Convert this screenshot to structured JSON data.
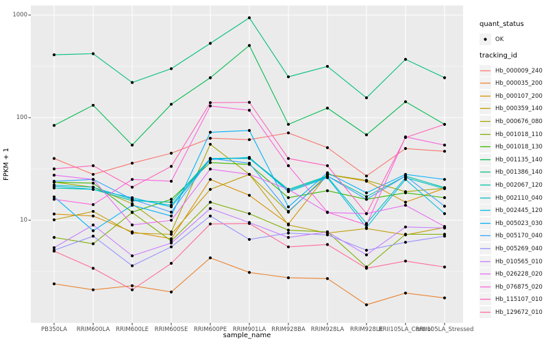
{
  "colors": {
    "panel_bg": "#EBEBEB",
    "grid": "#FFFFFF",
    "tick_mark": "#333333",
    "tick_text": "#4D4D4D",
    "axis_title_text": "#000000",
    "point": "#000000",
    "legend_key_bg": "#F2F2F2"
  },
  "legend": {
    "quant_status_title": "quant_status",
    "quant_status_items": [
      {
        "label": "OK",
        "marker": "point-icon",
        "color": "#000000"
      }
    ],
    "tracking_title": "tracking_id"
  },
  "chart_data": {
    "type": "line",
    "title": "",
    "xlabel": "sample_name",
    "ylabel": "FPKM + 1",
    "y_scale": "log10",
    "ylim": [
      1,
      1100
    ],
    "y_ticks": [
      10,
      100,
      1000
    ],
    "grid": true,
    "legend_position": "right",
    "point_marker": "black-dot (quant_status OK)",
    "categories": [
      "PB350LA",
      "RRIM600LA",
      "RRIM600LE",
      "RRIM600SE",
      "RRIM600PE",
      "RRIM901LA",
      "RRIM928BA",
      "RRIM928LA",
      "RRIM928LE",
      "RRII105LA_Control",
      "RRII105LA_Stressed"
    ],
    "series": [
      {
        "name": "Hb_000009_240",
        "color": "#F8766D",
        "values": [
          40,
          28,
          36,
          45,
          63,
          61,
          71,
          51,
          27,
          50,
          47
        ]
      },
      {
        "name": "Hb_000035_200",
        "color": "#EA8331",
        "values": [
          2.4,
          2.1,
          2.3,
          2.0,
          4.3,
          3.1,
          2.75,
          2.7,
          1.5,
          1.95,
          1.75
        ]
      },
      {
        "name": "Hb_000107_200",
        "color": "#D89000",
        "values": [
          11.5,
          11,
          7.7,
          6.6,
          25,
          17.5,
          9.2,
          28,
          24,
          15,
          20.5
        ]
      },
      {
        "name": "Hb_000359_140",
        "color": "#C09B00",
        "values": [
          10.1,
          12.2,
          7.5,
          7.3,
          20,
          28,
          9.0,
          7.5,
          8.3,
          7.2,
          8.5
        ]
      },
      {
        "name": "Hb_000676_080",
        "color": "#A3A500",
        "values": [
          23.5,
          21,
          14.5,
          7.7,
          55,
          28,
          12,
          28,
          24.5,
          19,
          20.5
        ]
      },
      {
        "name": "Hb_001018_110",
        "color": "#7CAE00",
        "values": [
          6.8,
          5.9,
          11.9,
          6.3,
          15,
          11.6,
          8.0,
          7.7,
          3.5,
          7.3,
          7.3
        ]
      },
      {
        "name": "Hb_001018_130",
        "color": "#39B600",
        "values": [
          23.5,
          23,
          12,
          16,
          36.5,
          35,
          16.6,
          19.4,
          16,
          18.5,
          16.6
        ]
      },
      {
        "name": "Hb_001135_140",
        "color": "#00BB4E",
        "values": [
          84,
          132,
          54,
          135,
          245,
          505,
          86,
          124,
          68,
          143,
          86
        ]
      },
      {
        "name": "Hb_001386_140",
        "color": "#00BF7D",
        "values": [
          410,
          420,
          220,
          300,
          530,
          940,
          250,
          316,
          156,
          370,
          245
        ]
      },
      {
        "name": "Hb_002067_120",
        "color": "#00C1A3",
        "values": [
          20.6,
          20,
          15.5,
          15,
          40,
          40.5,
          20,
          27,
          17,
          27,
          20.8
        ]
      },
      {
        "name": "Hb_002110_040",
        "color": "#00BFC4",
        "values": [
          22,
          21,
          16,
          14,
          40,
          40,
          19.5,
          26.5,
          9.3,
          26,
          20.3
        ]
      },
      {
        "name": "Hb_002445_120",
        "color": "#00BAE0",
        "values": [
          21.5,
          20,
          16.6,
          13.5,
          39,
          41,
          19,
          26,
          8.5,
          25,
          11.6
        ]
      },
      {
        "name": "Hb_005023_030",
        "color": "#00B0F6",
        "values": [
          16.9,
          7.9,
          14,
          11,
          72,
          75,
          13.5,
          29,
          18.5,
          28,
          25
        ]
      },
      {
        "name": "Hb_005170_040",
        "color": "#35A2FF",
        "values": [
          24,
          25,
          16,
          12,
          40,
          36,
          12.2,
          27,
          16,
          27,
          13.7
        ]
      },
      {
        "name": "Hb_005269_040",
        "color": "#9590FF",
        "values": [
          5.1,
          7.0,
          3.6,
          5.5,
          11,
          6.5,
          7.5,
          7.2,
          5.1,
          6.1,
          7.0
        ]
      },
      {
        "name": "Hb_010565_010",
        "color": "#C77CFF",
        "values": [
          5.4,
          9.0,
          4.5,
          6.0,
          13,
          9.5,
          6.8,
          7.7,
          4.6,
          8.6,
          8.4
        ]
      },
      {
        "name": "Hb_026228_020",
        "color": "#E76BF3",
        "values": [
          27.5,
          25,
          9.0,
          10,
          31.5,
          28,
          20,
          11.9,
          11.6,
          14,
          8.7
        ]
      },
      {
        "name": "Hb_076875_020",
        "color": "#FA62DB",
        "values": [
          16,
          14.2,
          25,
          24,
          130,
          118,
          34,
          12,
          9.0,
          65,
          54
        ]
      },
      {
        "name": "Hb_115107_010",
        "color": "#FF62BC",
        "values": [
          31.7,
          34,
          21,
          33.5,
          140,
          141,
          40,
          34,
          11.6,
          64,
          86
        ]
      },
      {
        "name": "Hb_129672_010",
        "color": "#FF6A98",
        "values": [
          5.0,
          3.4,
          2.1,
          3.8,
          9.2,
          9.3,
          5.5,
          5.8,
          3.4,
          4.0,
          3.5
        ]
      }
    ]
  }
}
